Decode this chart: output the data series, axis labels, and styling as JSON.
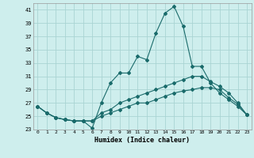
{
  "xlabel": "Humidex (Indice chaleur)",
  "background_color": "#ceeeed",
  "grid_color": "#aad4d3",
  "line_color": "#1a6b6b",
  "xlim": [
    -0.5,
    23.5
  ],
  "ylim": [
    23,
    42
  ],
  "yticks": [
    23,
    25,
    27,
    29,
    31,
    33,
    35,
    37,
    39,
    41
  ],
  "xticks": [
    0,
    1,
    2,
    3,
    4,
    5,
    6,
    7,
    8,
    9,
    10,
    11,
    12,
    13,
    14,
    15,
    16,
    17,
    18,
    19,
    20,
    21,
    22,
    23
  ],
  "series1_x": [
    0,
    1,
    2,
    3,
    4,
    5,
    6,
    7,
    8,
    9,
    10,
    11,
    12,
    13,
    14,
    15,
    16,
    17,
    18,
    19,
    20,
    21,
    22,
    23
  ],
  "series1_y": [
    26.5,
    25.5,
    24.8,
    24.5,
    24.3,
    24.3,
    23.2,
    27.0,
    30.0,
    31.5,
    31.5,
    34.0,
    33.5,
    37.5,
    40.5,
    41.5,
    38.5,
    32.5,
    32.5,
    30.0,
    28.5,
    27.5,
    26.5,
    25.2
  ],
  "series2_x": [
    0,
    1,
    2,
    3,
    4,
    5,
    6,
    7,
    8,
    9,
    10,
    11,
    12,
    13,
    14,
    15,
    16,
    17,
    18,
    19,
    20,
    21,
    22,
    23
  ],
  "series2_y": [
    26.5,
    25.5,
    24.8,
    24.5,
    24.3,
    24.3,
    24.3,
    25.5,
    26.0,
    27.0,
    27.5,
    28.0,
    28.5,
    29.0,
    29.5,
    30.0,
    30.5,
    31.0,
    31.0,
    30.2,
    29.5,
    28.5,
    27.0,
    25.2
  ],
  "series3_x": [
    0,
    1,
    2,
    3,
    4,
    5,
    6,
    7,
    8,
    9,
    10,
    11,
    12,
    13,
    14,
    15,
    16,
    17,
    18,
    19,
    20,
    21,
    22,
    23
  ],
  "series3_y": [
    26.5,
    25.5,
    24.8,
    24.5,
    24.3,
    24.3,
    24.3,
    25.0,
    25.5,
    26.0,
    26.5,
    27.0,
    27.0,
    27.5,
    28.0,
    28.5,
    28.8,
    29.0,
    29.3,
    29.3,
    29.0,
    27.8,
    26.8,
    25.2
  ]
}
